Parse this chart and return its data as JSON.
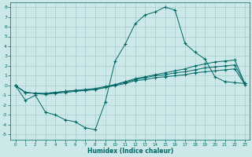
{
  "xlabel": "Humidex (Indice chaleur)",
  "xlim": [
    -0.5,
    23.5
  ],
  "ylim": [
    -5.5,
    8.5
  ],
  "xticks": [
    0,
    1,
    2,
    3,
    4,
    5,
    6,
    7,
    8,
    9,
    10,
    11,
    12,
    13,
    14,
    15,
    16,
    17,
    18,
    19,
    20,
    21,
    22,
    23
  ],
  "yticks": [
    -5,
    -4,
    -3,
    -2,
    -1,
    0,
    1,
    2,
    3,
    4,
    5,
    6,
    7,
    8
  ],
  "background_color": "#cce8e8",
  "grid_color": "#a8cccc",
  "line_color": "#006666",
  "lines": [
    {
      "x": [
        0,
        1,
        2,
        3,
        4,
        5,
        6,
        7,
        8,
        9,
        10,
        11,
        12,
        13,
        14,
        15,
        16,
        17,
        18,
        19,
        20,
        21,
        22,
        23
      ],
      "y": [
        0.0,
        -1.5,
        -1.0,
        -2.7,
        -3.0,
        -3.5,
        -3.7,
        -4.3,
        -4.5,
        -1.7,
        2.5,
        4.2,
        6.3,
        7.2,
        7.5,
        8.0,
        7.7,
        4.3,
        3.4,
        2.7,
        0.9,
        0.4,
        0.3,
        0.2
      ]
    },
    {
      "x": [
        0,
        1,
        2,
        3,
        4,
        5,
        6,
        7,
        8,
        9,
        10,
        11,
        12,
        13,
        14,
        15,
        16,
        17,
        18,
        19,
        20,
        21,
        22,
        23
      ],
      "y": [
        0.0,
        -0.7,
        -0.8,
        -0.8,
        -0.7,
        -0.6,
        -0.5,
        -0.5,
        -0.4,
        -0.2,
        0.1,
        0.4,
        0.7,
        0.9,
        1.1,
        1.3,
        1.5,
        1.7,
        2.0,
        2.2,
        2.4,
        2.5,
        2.6,
        0.2
      ]
    },
    {
      "x": [
        0,
        1,
        2,
        3,
        4,
        5,
        6,
        7,
        8,
        9,
        10,
        11,
        12,
        13,
        14,
        15,
        16,
        17,
        18,
        19,
        20,
        21,
        22,
        23
      ],
      "y": [
        0.0,
        -0.7,
        -0.8,
        -0.8,
        -0.7,
        -0.6,
        -0.5,
        -0.4,
        -0.3,
        -0.1,
        0.1,
        0.3,
        0.6,
        0.8,
        1.0,
        1.1,
        1.3,
        1.4,
        1.6,
        1.8,
        1.9,
        2.0,
        2.1,
        0.2
      ]
    },
    {
      "x": [
        0,
        1,
        2,
        3,
        4,
        5,
        6,
        7,
        8,
        9,
        10,
        11,
        12,
        13,
        14,
        15,
        16,
        17,
        18,
        19,
        20,
        21,
        22,
        23
      ],
      "y": [
        0.0,
        -0.7,
        -0.8,
        -0.9,
        -0.8,
        -0.7,
        -0.6,
        -0.5,
        -0.4,
        -0.2,
        0.0,
        0.2,
        0.5,
        0.6,
        0.8,
        0.9,
        1.0,
        1.1,
        1.3,
        1.4,
        1.5,
        1.6,
        1.7,
        0.1
      ]
    }
  ]
}
